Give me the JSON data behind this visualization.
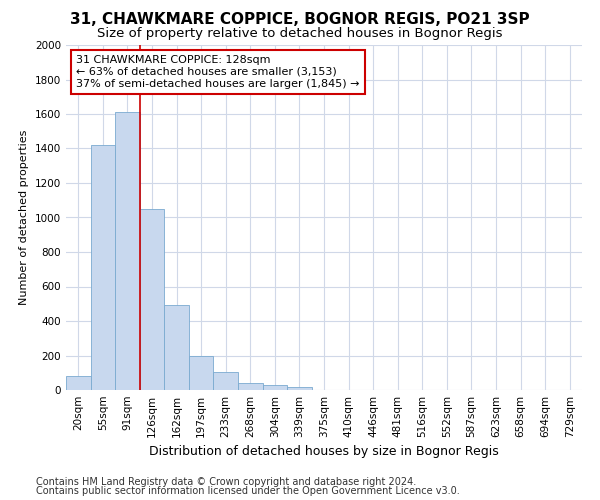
{
  "title": "31, CHAWKMARE COPPICE, BOGNOR REGIS, PO21 3SP",
  "subtitle": "Size of property relative to detached houses in Bognor Regis",
  "xlabel": "Distribution of detached houses by size in Bognor Regis",
  "ylabel": "Number of detached properties",
  "categories": [
    "20sqm",
    "55sqm",
    "91sqm",
    "126sqm",
    "162sqm",
    "197sqm",
    "233sqm",
    "268sqm",
    "304sqm",
    "339sqm",
    "375sqm",
    "410sqm",
    "446sqm",
    "481sqm",
    "516sqm",
    "552sqm",
    "587sqm",
    "623sqm",
    "658sqm",
    "694sqm",
    "729sqm"
  ],
  "values": [
    80,
    1420,
    1610,
    1050,
    490,
    200,
    105,
    40,
    30,
    20,
    0,
    0,
    0,
    0,
    0,
    0,
    0,
    0,
    0,
    0,
    0
  ],
  "bar_color": "#c8d8ee",
  "bar_edge_color": "#7aaad0",
  "annotation_text_line1": "31 CHAWKMARE COPPICE: 128sqm",
  "annotation_text_line2": "← 63% of detached houses are smaller (3,153)",
  "annotation_text_line3": "37% of semi-detached houses are larger (1,845) →",
  "annotation_box_facecolor": "#ffffff",
  "annotation_box_edgecolor": "#cc0000",
  "vline_color": "#cc0000",
  "vline_x_index": 3,
  "ylim": [
    0,
    2000
  ],
  "yticks": [
    0,
    200,
    400,
    600,
    800,
    1000,
    1200,
    1400,
    1600,
    1800,
    2000
  ],
  "footnote_line1": "Contains HM Land Registry data © Crown copyright and database right 2024.",
  "footnote_line2": "Contains public sector information licensed under the Open Government Licence v3.0.",
  "fig_bg_color": "#ffffff",
  "plot_bg_color": "#ffffff",
  "grid_color": "#d0d8e8",
  "title_fontsize": 11,
  "subtitle_fontsize": 9.5,
  "xlabel_fontsize": 9,
  "ylabel_fontsize": 8,
  "tick_fontsize": 7.5,
  "annot_fontsize": 8,
  "footnote_fontsize": 7
}
